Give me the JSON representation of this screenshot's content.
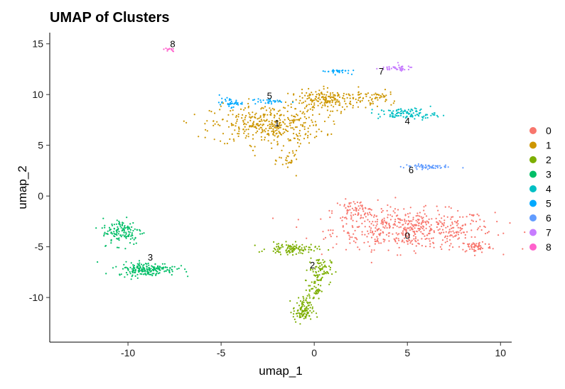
{
  "chart_data": {
    "type": "scatter",
    "title": "UMAP of Clusters",
    "xlabel": "umap_1",
    "ylabel": "umap_2",
    "xlim": [
      -14.2,
      10.6
    ],
    "ylim": [
      -14.4,
      16.1
    ],
    "xticks": [
      -10,
      -5,
      0,
      5,
      10
    ],
    "xtick_labels": [
      "-10",
      "-5",
      "0",
      "5",
      "10"
    ],
    "yticks": [
      -10,
      -5,
      0,
      5,
      10,
      15
    ],
    "ytick_labels": [
      "-10",
      "-5",
      "0",
      "5",
      "10",
      "15"
    ],
    "grid": false,
    "legend_position": "right",
    "series": [
      {
        "name": "0",
        "color": "#F8766D",
        "label_pos": [
          5.0,
          -4.0
        ],
        "regions": [
          {
            "center": [
              5.3,
              -3.3
            ],
            "spread": [
              3.6,
              1.6
            ],
            "n": 520
          },
          {
            "center": [
              2.2,
              -1.5
            ],
            "spread": [
              1.0,
              0.9
            ],
            "n": 80
          },
          {
            "center": [
              8.7,
              -5.0
            ],
            "spread": [
              0.7,
              0.5
            ],
            "n": 60
          }
        ]
      },
      {
        "name": "1",
        "color": "#CD9600",
        "label_pos": [
          -2.0,
          7.1
        ],
        "regions": [
          {
            "center": [
              -2.5,
              7.0
            ],
            "spread": [
              2.5,
              1.6
            ],
            "n": 380
          },
          {
            "center": [
              1.0,
              9.5
            ],
            "spread": [
              2.0,
              0.8
            ],
            "n": 220
          },
          {
            "center": [
              -1.3,
              3.5
            ],
            "spread": [
              0.5,
              1.0
            ],
            "n": 30
          },
          {
            "center": [
              3.5,
              9.8
            ],
            "spread": [
              0.6,
              0.4
            ],
            "n": 25
          }
        ]
      },
      {
        "name": "2",
        "color": "#7CAE00",
        "label_pos": [
          -0.1,
          -6.9
        ],
        "regions": [
          {
            "center": [
              -1.2,
              -5.2
            ],
            "spread": [
              1.1,
              0.45
            ],
            "n": 110
          },
          {
            "center": [
              0.3,
              -7.3
            ],
            "spread": [
              0.5,
              1.1
            ],
            "n": 80
          },
          {
            "center": [
              -0.6,
              -11.3
            ],
            "spread": [
              0.45,
              1.0
            ],
            "n": 110
          },
          {
            "center": [
              0.0,
              -9.2
            ],
            "spread": [
              0.3,
              0.8
            ],
            "n": 40
          }
        ]
      },
      {
        "name": "3",
        "color": "#00BE67",
        "label_pos": [
          -8.8,
          -6.1
        ],
        "regions": [
          {
            "center": [
              -10.3,
              -3.5
            ],
            "spread": [
              0.9,
              1.1
            ],
            "n": 130
          },
          {
            "center": [
              -9.0,
              -7.2
            ],
            "spread": [
              1.3,
              0.55
            ],
            "n": 200
          }
        ]
      },
      {
        "name": "4",
        "color": "#00BFC4",
        "label_pos": [
          5.0,
          7.3
        ],
        "regions": [
          {
            "center": [
              5.0,
              8.1
            ],
            "spread": [
              1.3,
              0.45
            ],
            "n": 110
          }
        ]
      },
      {
        "name": "5",
        "color": "#00A9FF",
        "label_pos": [
          -2.4,
          9.8
        ],
        "regions": [
          {
            "center": [
              -4.5,
              9.2
            ],
            "spread": [
              0.5,
              0.35
            ],
            "n": 40
          },
          {
            "center": [
              -2.5,
              9.3
            ],
            "spread": [
              0.8,
              0.25
            ],
            "n": 30
          },
          {
            "center": [
              1.2,
              12.3
            ],
            "spread": [
              0.6,
              0.2
            ],
            "n": 30
          }
        ]
      },
      {
        "name": "6",
        "color": "#619CFF",
        "label_pos": [
          5.2,
          2.5
        ],
        "regions": [
          {
            "center": [
              6.0,
              2.9
            ],
            "spread": [
              1.0,
              0.2
            ],
            "n": 60
          }
        ]
      },
      {
        "name": "7",
        "color": "#C77CFF",
        "label_pos": [
          3.6,
          12.2
        ],
        "regions": [
          {
            "center": [
              4.3,
              12.6
            ],
            "spread": [
              0.9,
              0.25
            ],
            "n": 40
          }
        ]
      },
      {
        "name": "8",
        "color": "#FF61CC",
        "label_pos": [
          -7.6,
          14.9
        ],
        "regions": [
          {
            "center": [
              -7.8,
              14.4
            ],
            "spread": [
              0.25,
              0.15
            ],
            "n": 12
          }
        ]
      }
    ]
  }
}
